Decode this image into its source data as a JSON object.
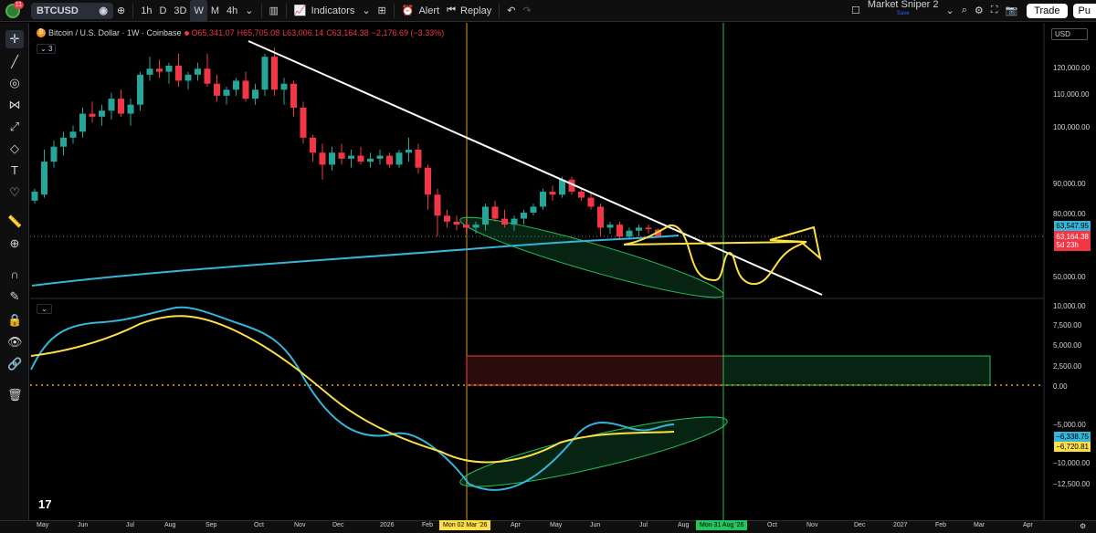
{
  "topbar": {
    "notification_count": "11",
    "symbol": "BTCUSD",
    "timeframes": [
      "1h",
      "D",
      "3D",
      "W",
      "M",
      "4h"
    ],
    "active_timeframe": "W",
    "indicators_label": "Indicators",
    "alert_label": "Alert",
    "replay_label": "Replay",
    "layout_name": "Market Sniper 2",
    "layout_save": "Save",
    "trade_label": "Trade",
    "publish_label": "Pu"
  },
  "legend": {
    "title": "Bitcoin / U.S. Dollar · 1W · Coinbase",
    "o": "O65,341.07",
    "h": "H65,705.08",
    "l": "L63,006.14",
    "c": "C63,164.38",
    "change": "−2,176.69 (−3.33%)",
    "indicator_count": "3"
  },
  "currency": "USD",
  "price_axis": [
    "120,000.00",
    "110,000.00",
    "100,000.00",
    "90,000.00",
    "80,000.00",
    "70,000.00",
    "50,000.00"
  ],
  "price_labels": {
    "ma_value": "63,547.95",
    "last_price": "63,164.38",
    "countdown": "5d 23h"
  },
  "osc_axis": [
    "10,000.00",
    "7,500.00",
    "5,000.00",
    "2,500.00",
    "0.00",
    "−5,000.00",
    "−10,000.00",
    "−12,500.00"
  ],
  "osc_labels": {
    "blue": "−6,338.75",
    "yellow": "−6,720.81"
  },
  "time_axis": [
    "May",
    "Jun",
    "Jul",
    "Aug",
    "Sep",
    "Oct",
    "Nov",
    "Dec",
    "2026",
    "Feb",
    "Apr",
    "May",
    "Jun",
    "Jul",
    "Aug",
    "Oct",
    "Nov",
    "Dec",
    "2027",
    "Feb",
    "Mar",
    "Apr"
  ],
  "time_markers": {
    "left": "Mon 02 Mar '26",
    "right": "Mon 31 Aug '26"
  },
  "colors": {
    "up": "#26a69a",
    "down": "#f23645",
    "ma": "#36b5d8",
    "signal": "#fde047",
    "green_zone": "#22c55e",
    "red_zone": "#ef4444"
  },
  "chart_data": {
    "type": "candlestick",
    "y_unit": "USD",
    "candles": [
      {
        "o": 75000,
        "h": 79000,
        "l": 74000,
        "c": 78000
      },
      {
        "o": 77000,
        "h": 92000,
        "l": 76000,
        "c": 88000
      },
      {
        "o": 88000,
        "h": 95000,
        "l": 86000,
        "c": 93000
      },
      {
        "o": 93000,
        "h": 98000,
        "l": 90000,
        "c": 96000
      },
      {
        "o": 96000,
        "h": 100000,
        "l": 94000,
        "c": 98000
      },
      {
        "o": 98000,
        "h": 106000,
        "l": 96000,
        "c": 104000
      },
      {
        "o": 104000,
        "h": 108000,
        "l": 101000,
        "c": 103000
      },
      {
        "o": 103000,
        "h": 107000,
        "l": 100000,
        "c": 105000
      },
      {
        "o": 105000,
        "h": 111000,
        "l": 102000,
        "c": 109000
      },
      {
        "o": 109000,
        "h": 112000,
        "l": 103000,
        "c": 104000
      },
      {
        "o": 104000,
        "h": 109000,
        "l": 100000,
        "c": 107000
      },
      {
        "o": 107000,
        "h": 118000,
        "l": 105000,
        "c": 117000
      },
      {
        "o": 117000,
        "h": 123000,
        "l": 115000,
        "c": 119000
      },
      {
        "o": 119000,
        "h": 122000,
        "l": 116000,
        "c": 118000
      },
      {
        "o": 118000,
        "h": 121000,
        "l": 114000,
        "c": 120000
      },
      {
        "o": 120000,
        "h": 124000,
        "l": 113000,
        "c": 115000
      },
      {
        "o": 115000,
        "h": 118000,
        "l": 112000,
        "c": 117000
      },
      {
        "o": 117000,
        "h": 121000,
        "l": 115000,
        "c": 119000
      },
      {
        "o": 119000,
        "h": 124000,
        "l": 113000,
        "c": 114000
      },
      {
        "o": 114000,
        "h": 117000,
        "l": 108000,
        "c": 110000
      },
      {
        "o": 110000,
        "h": 113000,
        "l": 107000,
        "c": 112000
      },
      {
        "o": 112000,
        "h": 116000,
        "l": 110000,
        "c": 115000
      },
      {
        "o": 115000,
        "h": 118000,
        "l": 108000,
        "c": 109000
      },
      {
        "o": 109000,
        "h": 114000,
        "l": 107000,
        "c": 112000
      },
      {
        "o": 112000,
        "h": 124000,
        "l": 110000,
        "c": 123000
      },
      {
        "o": 123000,
        "h": 126000,
        "l": 110000,
        "c": 112000
      },
      {
        "o": 112000,
        "h": 116000,
        "l": 107000,
        "c": 114000
      },
      {
        "o": 114000,
        "h": 115000,
        "l": 103000,
        "c": 106000
      },
      {
        "o": 106000,
        "h": 108000,
        "l": 94000,
        "c": 96000
      },
      {
        "o": 96000,
        "h": 97000,
        "l": 88000,
        "c": 91000
      },
      {
        "o": 91000,
        "h": 94000,
        "l": 82000,
        "c": 87000
      },
      {
        "o": 87000,
        "h": 93000,
        "l": 85000,
        "c": 91000
      },
      {
        "o": 91000,
        "h": 94000,
        "l": 87000,
        "c": 89000
      },
      {
        "o": 89000,
        "h": 92000,
        "l": 86000,
        "c": 90000
      },
      {
        "o": 90000,
        "h": 93000,
        "l": 87000,
        "c": 88000
      },
      {
        "o": 88000,
        "h": 91000,
        "l": 86000,
        "c": 89000
      },
      {
        "o": 89000,
        "h": 92000,
        "l": 87000,
        "c": 90000
      },
      {
        "o": 90000,
        "h": 91000,
        "l": 86000,
        "c": 87000
      },
      {
        "o": 87000,
        "h": 92000,
        "l": 86000,
        "c": 91000
      },
      {
        "o": 91000,
        "h": 96000,
        "l": 88000,
        "c": 92000
      },
      {
        "o": 92000,
        "h": 94000,
        "l": 84000,
        "c": 86000
      },
      {
        "o": 86000,
        "h": 87000,
        "l": 72000,
        "c": 77000
      },
      {
        "o": 77000,
        "h": 79000,
        "l": 63000,
        "c": 70000
      },
      {
        "o": 70000,
        "h": 72000,
        "l": 66000,
        "c": 68000
      },
      {
        "o": 68000,
        "h": 70000,
        "l": 65000,
        "c": 67000
      },
      {
        "o": 67000,
        "h": 69000,
        "l": 64000,
        "c": 66000
      },
      {
        "o": 66000,
        "h": 68000,
        "l": 64000,
        "c": 67000
      },
      {
        "o": 67000,
        "h": 74000,
        "l": 65000,
        "c": 73000
      },
      {
        "o": 73000,
        "h": 75000,
        "l": 68000,
        "c": 69000
      },
      {
        "o": 69000,
        "h": 72000,
        "l": 66000,
        "c": 67000
      },
      {
        "o": 67000,
        "h": 70000,
        "l": 65000,
        "c": 69000
      },
      {
        "o": 69000,
        "h": 72000,
        "l": 67000,
        "c": 71000
      },
      {
        "o": 71000,
        "h": 74000,
        "l": 70000,
        "c": 73000
      },
      {
        "o": 73000,
        "h": 79000,
        "l": 72000,
        "c": 78000
      },
      {
        "o": 78000,
        "h": 80000,
        "l": 75000,
        "c": 77000
      },
      {
        "o": 77000,
        "h": 83000,
        "l": 76000,
        "c": 82000
      },
      {
        "o": 82000,
        "h": 83000,
        "l": 77000,
        "c": 78000
      },
      {
        "o": 78000,
        "h": 79000,
        "l": 75000,
        "c": 76000
      },
      {
        "o": 76000,
        "h": 78000,
        "l": 72000,
        "c": 73000
      },
      {
        "o": 73000,
        "h": 74000,
        "l": 63000,
        "c": 66000
      },
      {
        "o": 66000,
        "h": 68000,
        "l": 64000,
        "c": 67000
      },
      {
        "o": 67000,
        "h": 68000,
        "l": 62000,
        "c": 63000
      },
      {
        "o": 63000,
        "h": 66000,
        "l": 62000,
        "c": 65000
      },
      {
        "o": 65000,
        "h": 67000,
        "l": 63000,
        "c": 66000
      },
      {
        "o": 66000,
        "h": 67000,
        "l": 64000,
        "c": 65500
      },
      {
        "o": 65341.07,
        "h": 65705.08,
        "l": 63006.14,
        "c": 63164.38
      }
    ]
  }
}
